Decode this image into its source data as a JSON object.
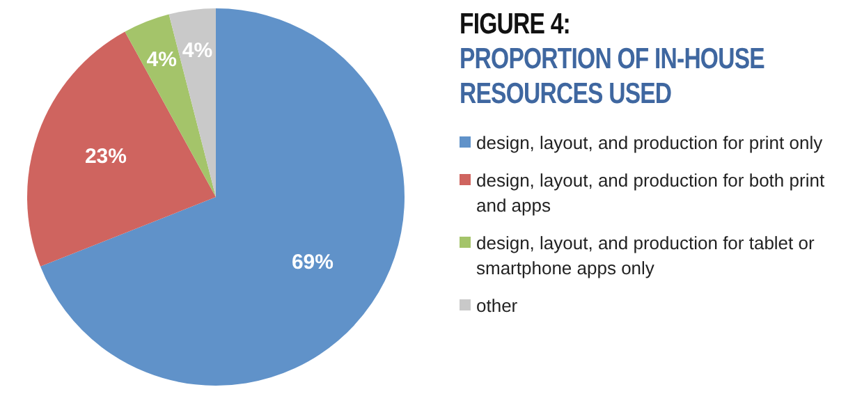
{
  "chart_data": {
    "type": "pie",
    "title": "FIGURE 4:",
    "subtitle": "PROPORTION OF IN-HOUSE RESOURCES USED",
    "categories": [
      "design, layout, and production for print only",
      "design, layout, and production for both print and apps",
      "design, layout, and production for tablet or smartphone apps only",
      "other"
    ],
    "values": [
      69,
      23,
      4,
      4
    ],
    "colors": [
      "#6092c9",
      "#cf645f",
      "#a4c46a",
      "#c9c9c9"
    ],
    "value_labels": [
      "69%",
      "23%",
      "4%",
      "4%"
    ],
    "legend": "right"
  }
}
